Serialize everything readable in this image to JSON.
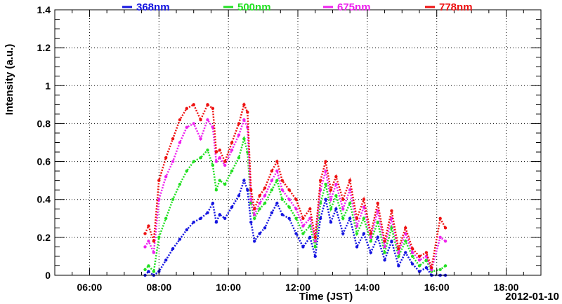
{
  "chart_data": {
    "type": "scatter",
    "title": "",
    "xlabel": "Time (JST)",
    "ylabel": "Intensity (a.u.)",
    "date_label": "2012-01-10",
    "x_unit": "hour",
    "xlim": [
      5,
      19
    ],
    "ylim": [
      0,
      1.4
    ],
    "x_ticks": [
      6,
      8,
      10,
      12,
      14,
      16,
      18
    ],
    "x_tick_labels": [
      "06:00",
      "08:00",
      "10:00",
      "12:00",
      "14:00",
      "16:00",
      "18:00"
    ],
    "y_ticks": [
      0,
      0.2,
      0.4,
      0.6,
      0.8,
      1,
      1.2,
      1.4
    ],
    "y_tick_labels": [
      "0",
      "0.2",
      "0.4",
      "0.6",
      "0.8",
      "1",
      "1.2",
      "1.4"
    ],
    "grid": true,
    "legend_position": "top",
    "series": [
      {
        "name": "368nm",
        "color": "#1414e0",
        "x": [
          7.6,
          7.7,
          7.85,
          8.0,
          8.2,
          8.4,
          8.6,
          8.8,
          9.0,
          9.2,
          9.4,
          9.55,
          9.65,
          9.75,
          9.9,
          10.1,
          10.3,
          10.45,
          10.55,
          10.65,
          10.75,
          10.9,
          11.05,
          11.25,
          11.4,
          11.55,
          11.75,
          11.95,
          12.15,
          12.35,
          12.5,
          12.65,
          12.8,
          12.95,
          13.1,
          13.3,
          13.5,
          13.7,
          13.9,
          14.1,
          14.3,
          14.5,
          14.7,
          14.9,
          15.1,
          15.3,
          15.5,
          15.7,
          15.85,
          16.1,
          16.25
        ],
        "y": [
          0.0,
          0.02,
          0.0,
          0.02,
          0.08,
          0.14,
          0.19,
          0.24,
          0.28,
          0.3,
          0.33,
          0.38,
          0.28,
          0.32,
          0.3,
          0.36,
          0.42,
          0.5,
          0.45,
          0.28,
          0.18,
          0.22,
          0.25,
          0.33,
          0.38,
          0.32,
          0.3,
          0.22,
          0.15,
          0.2,
          0.1,
          0.3,
          0.4,
          0.28,
          0.35,
          0.22,
          0.3,
          0.15,
          0.22,
          0.12,
          0.2,
          0.08,
          0.18,
          0.05,
          0.12,
          0.06,
          0.02,
          0.04,
          0.0,
          0.0,
          0.0
        ]
      },
      {
        "name": "500nm",
        "color": "#22e022",
        "x": [
          7.6,
          7.7,
          7.85,
          8.0,
          8.2,
          8.4,
          8.6,
          8.8,
          9.0,
          9.2,
          9.4,
          9.55,
          9.65,
          9.75,
          9.9,
          10.1,
          10.3,
          10.45,
          10.55,
          10.65,
          10.75,
          10.9,
          11.05,
          11.25,
          11.4,
          11.55,
          11.75,
          11.95,
          12.15,
          12.35,
          12.5,
          12.65,
          12.8,
          12.95,
          13.1,
          13.3,
          13.5,
          13.7,
          13.9,
          14.1,
          14.3,
          14.5,
          14.7,
          14.9,
          15.1,
          15.3,
          15.5,
          15.7,
          15.85,
          16.1,
          16.25
        ],
        "y": [
          0.03,
          0.05,
          0.02,
          0.2,
          0.3,
          0.4,
          0.48,
          0.55,
          0.6,
          0.62,
          0.66,
          0.58,
          0.45,
          0.5,
          0.48,
          0.55,
          0.62,
          0.72,
          0.65,
          0.38,
          0.3,
          0.35,
          0.38,
          0.45,
          0.5,
          0.4,
          0.36,
          0.3,
          0.22,
          0.26,
          0.15,
          0.38,
          0.48,
          0.35,
          0.42,
          0.3,
          0.38,
          0.22,
          0.3,
          0.18,
          0.28,
          0.12,
          0.25,
          0.1,
          0.18,
          0.1,
          0.05,
          0.08,
          0.02,
          0.03,
          0.05
        ]
      },
      {
        "name": "675nm",
        "color": "#ee22ee",
        "x": [
          7.6,
          7.7,
          7.85,
          8.0,
          8.2,
          8.4,
          8.6,
          8.8,
          9.0,
          9.2,
          9.4,
          9.55,
          9.65,
          9.75,
          9.9,
          10.1,
          10.3,
          10.45,
          10.55,
          10.65,
          10.75,
          10.9,
          11.05,
          11.25,
          11.4,
          11.55,
          11.75,
          11.95,
          12.15,
          12.35,
          12.5,
          12.65,
          12.8,
          12.95,
          13.1,
          13.3,
          13.5,
          13.7,
          13.9,
          14.1,
          14.3,
          14.5,
          14.7,
          14.9,
          15.1,
          15.3,
          15.5,
          15.7,
          15.85,
          16.1,
          16.25
        ],
        "y": [
          0.15,
          0.18,
          0.12,
          0.4,
          0.52,
          0.6,
          0.7,
          0.78,
          0.8,
          0.72,
          0.82,
          0.78,
          0.6,
          0.62,
          0.58,
          0.66,
          0.74,
          0.82,
          0.78,
          0.4,
          0.32,
          0.38,
          0.42,
          0.5,
          0.55,
          0.45,
          0.4,
          0.35,
          0.26,
          0.3,
          0.18,
          0.45,
          0.55,
          0.4,
          0.48,
          0.35,
          0.45,
          0.26,
          0.36,
          0.2,
          0.34,
          0.15,
          0.3,
          0.12,
          0.22,
          0.12,
          0.08,
          0.1,
          0.03,
          0.2,
          0.18
        ]
      },
      {
        "name": "778nm",
        "color": "#ee1111",
        "x": [
          7.6,
          7.7,
          7.85,
          8.0,
          8.2,
          8.4,
          8.6,
          8.8,
          9.0,
          9.2,
          9.4,
          9.55,
          9.65,
          9.75,
          9.9,
          10.1,
          10.3,
          10.45,
          10.55,
          10.65,
          10.75,
          10.9,
          11.05,
          11.25,
          11.4,
          11.55,
          11.75,
          11.95,
          12.15,
          12.35,
          12.5,
          12.65,
          12.8,
          12.95,
          13.1,
          13.3,
          13.5,
          13.7,
          13.9,
          14.1,
          14.3,
          14.5,
          14.7,
          14.9,
          15.1,
          15.3,
          15.5,
          15.7,
          15.85,
          16.1,
          16.25
        ],
        "y": [
          0.22,
          0.26,
          0.18,
          0.5,
          0.62,
          0.72,
          0.82,
          0.88,
          0.9,
          0.82,
          0.9,
          0.88,
          0.65,
          0.66,
          0.6,
          0.7,
          0.8,
          0.9,
          0.86,
          0.45,
          0.35,
          0.42,
          0.46,
          0.55,
          0.6,
          0.5,
          0.45,
          0.4,
          0.3,
          0.35,
          0.2,
          0.5,
          0.6,
          0.45,
          0.52,
          0.4,
          0.5,
          0.3,
          0.4,
          0.22,
          0.38,
          0.18,
          0.34,
          0.14,
          0.25,
          0.14,
          0.1,
          0.12,
          0.04,
          0.3,
          0.25
        ]
      }
    ]
  }
}
